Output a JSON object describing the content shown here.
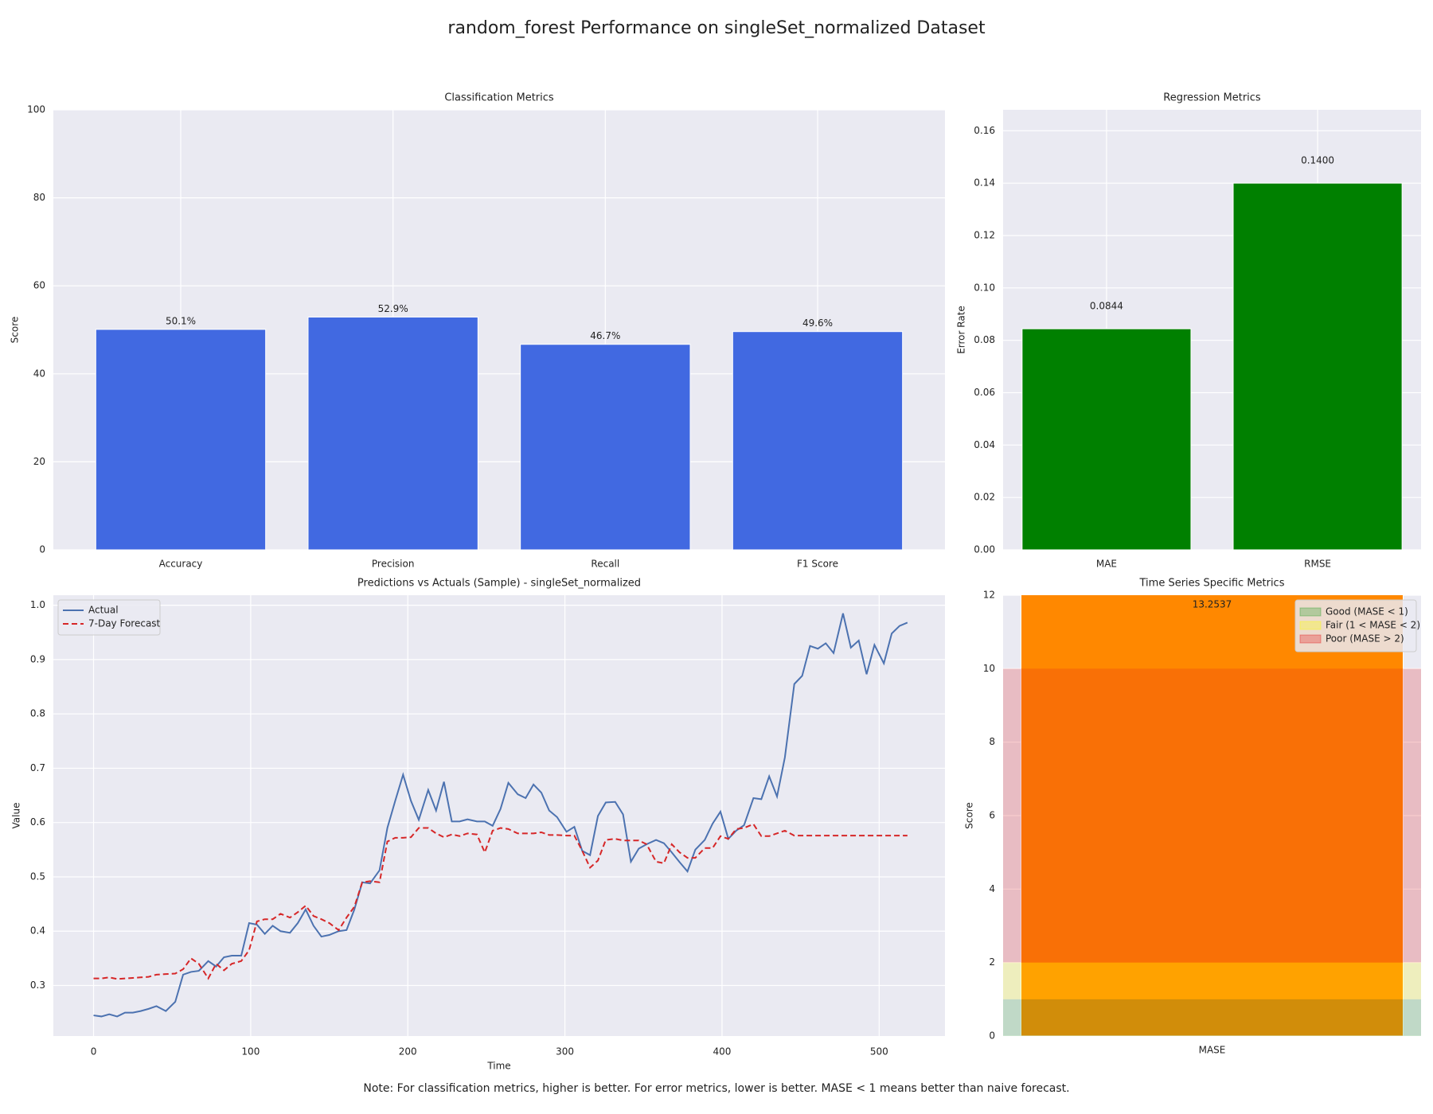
{
  "title": "random_forest Performance on singleSet_normalized Dataset",
  "note": "Note: For classification metrics, higher is better. For error metrics, lower is better. MASE < 1 means better than naive forecast.",
  "chart_data": [
    {
      "type": "bar",
      "title": "Classification Metrics",
      "ylabel": "Score",
      "categories": [
        "Accuracy",
        "Precision",
        "Recall",
        "F1 Score"
      ],
      "values": [
        50.1,
        52.9,
        46.7,
        49.6
      ],
      "value_labels": [
        "50.1%",
        "52.9%",
        "46.7%",
        "49.6%"
      ],
      "color": "#4169e1",
      "ylim": [
        0,
        100
      ],
      "yticks": [
        0,
        20,
        40,
        60,
        80,
        100
      ],
      "grid": true
    },
    {
      "type": "bar",
      "title": "Regression Metrics",
      "ylabel": "Error Rate",
      "categories": [
        "MAE",
        "RMSE"
      ],
      "values": [
        0.0844,
        0.14
      ],
      "value_labels": [
        "0.0844",
        "0.1400"
      ],
      "color": "#008000",
      "ylim": [
        0,
        0.168
      ],
      "yticks": [
        {
          "value": 0,
          "label": "0.00"
        },
        {
          "value": 0.02,
          "label": "0.02"
        },
        {
          "value": 0.04,
          "label": "0.04"
        },
        {
          "value": 0.06,
          "label": "0.06"
        },
        {
          "value": 0.08,
          "label": "0.08"
        },
        {
          "value": 0.1,
          "label": "0.10"
        },
        {
          "value": 0.12,
          "label": "0.12"
        },
        {
          "value": 0.14,
          "label": "0.14"
        },
        {
          "value": 0.16,
          "label": "0.16"
        }
      ],
      "grid": true
    },
    {
      "type": "line",
      "title": "Predictions vs Actuals (Sample) - singleSet_normalized",
      "xlabel": "Time",
      "ylabel": "Value",
      "x": [
        0,
        5,
        10,
        15,
        20,
        25,
        30,
        35,
        40,
        46,
        52,
        57,
        62,
        67,
        73,
        78,
        83,
        88,
        94,
        99,
        104,
        109,
        114,
        119,
        125,
        130,
        135,
        140,
        145,
        150,
        156,
        161,
        166,
        171,
        176,
        182,
        187,
        192,
        197,
        202,
        207,
        213,
        218,
        223,
        228,
        233,
        238,
        244,
        249,
        254,
        259,
        264,
        270,
        275,
        280,
        285,
        290,
        295,
        301,
        306,
        311,
        316,
        321,
        326,
        332,
        337,
        342,
        347,
        352,
        358,
        363,
        368,
        373,
        378,
        383,
        389,
        394,
        399,
        404,
        409,
        414,
        420,
        425,
        430,
        435,
        440,
        446,
        451,
        456,
        461,
        466,
        471,
        477,
        482,
        487,
        492,
        497,
        503,
        508,
        513,
        518
      ],
      "series": [
        {
          "name": "Actual",
          "color": "#4c72b0",
          "linestyle": "solid",
          "values": [
            0.245,
            0.243,
            0.247,
            0.243,
            0.25,
            0.25,
            0.253,
            0.257,
            0.262,
            0.253,
            0.27,
            0.32,
            0.325,
            0.327,
            0.345,
            0.335,
            0.352,
            0.355,
            0.355,
            0.415,
            0.412,
            0.395,
            0.41,
            0.4,
            0.397,
            0.415,
            0.44,
            0.41,
            0.39,
            0.393,
            0.4,
            0.402,
            0.44,
            0.49,
            0.488,
            0.512,
            0.59,
            0.64,
            0.688,
            0.64,
            0.605,
            0.66,
            0.622,
            0.675,
            0.602,
            0.602,
            0.606,
            0.602,
            0.602,
            0.594,
            0.625,
            0.673,
            0.652,
            0.645,
            0.67,
            0.655,
            0.622,
            0.61,
            0.583,
            0.592,
            0.548,
            0.54,
            0.612,
            0.637,
            0.638,
            0.615,
            0.528,
            0.552,
            0.56,
            0.568,
            0.562,
            0.545,
            0.527,
            0.51,
            0.55,
            0.568,
            0.598,
            0.62,
            0.57,
            0.585,
            0.595,
            0.645,
            0.643,
            0.685,
            0.648,
            0.72,
            0.855,
            0.87,
            0.925,
            0.92,
            0.93,
            0.912,
            0.985,
            0.922,
            0.935,
            0.873,
            0.927,
            0.893,
            0.948,
            0.962,
            0.968
          ]
        },
        {
          "name": "7-Day Forecast",
          "color": "#d62728",
          "linestyle": "dashed",
          "values": [
            0.313,
            0.313,
            0.315,
            0.312,
            0.313,
            0.314,
            0.315,
            0.316,
            0.32,
            0.321,
            0.322,
            0.33,
            0.35,
            0.34,
            0.313,
            0.34,
            0.328,
            0.34,
            0.345,
            0.365,
            0.418,
            0.422,
            0.422,
            0.432,
            0.425,
            0.435,
            0.447,
            0.428,
            0.422,
            0.415,
            0.402,
            0.425,
            0.445,
            0.49,
            0.492,
            0.49,
            0.565,
            0.572,
            0.572,
            0.573,
            0.59,
            0.59,
            0.58,
            0.573,
            0.578,
            0.575,
            0.58,
            0.578,
            0.545,
            0.585,
            0.59,
            0.588,
            0.58,
            0.58,
            0.58,
            0.582,
            0.577,
            0.577,
            0.576,
            0.576,
            0.548,
            0.517,
            0.53,
            0.568,
            0.57,
            0.567,
            0.567,
            0.567,
            0.56,
            0.528,
            0.525,
            0.56,
            0.545,
            0.535,
            0.535,
            0.553,
            0.553,
            0.575,
            0.57,
            0.588,
            0.59,
            0.597,
            0.575,
            0.575,
            0.58,
            0.585,
            0.576,
            0.576,
            0.576,
            0.576,
            0.576,
            0.576,
            0.576,
            0.576,
            0.576,
            0.576,
            0.576,
            0.576,
            0.576,
            0.576,
            0.576
          ]
        }
      ],
      "xlim": [
        -25.6,
        541.9
      ],
      "xticks": [
        0,
        100,
        200,
        300,
        400,
        500
      ],
      "ylim": [
        0.207,
        1.0185
      ],
      "yticks": [
        0.3,
        0.4,
        0.5,
        0.6,
        0.7,
        0.8,
        0.9,
        {
          "value": 1,
          "label": "1.0"
        }
      ],
      "grid": true,
      "legend": "upper left"
    },
    {
      "type": "bar",
      "title": "Time Series Specific Metrics",
      "ylabel": "Score",
      "categories": [
        "MASE"
      ],
      "values": [
        13.2537
      ],
      "value_labels": [
        "13.2537"
      ],
      "color": "#ff8800",
      "ylim": [
        0,
        12
      ],
      "yticks": [
        0,
        2,
        4,
        6,
        8,
        10,
        12
      ],
      "grid": true,
      "legend": "upper right",
      "bands": [
        {
          "name": "Good (MASE < 1)",
          "range": [
            0,
            1
          ],
          "color": "#2ca02c"
        },
        {
          "name": "Fair (1 < MASE < 2)",
          "range": [
            1,
            2
          ],
          "color": "#ffff00"
        },
        {
          "name": "Poor (MASE > 2)",
          "range": [
            2,
            10
          ],
          "color": "#e31a1c"
        }
      ]
    }
  ]
}
